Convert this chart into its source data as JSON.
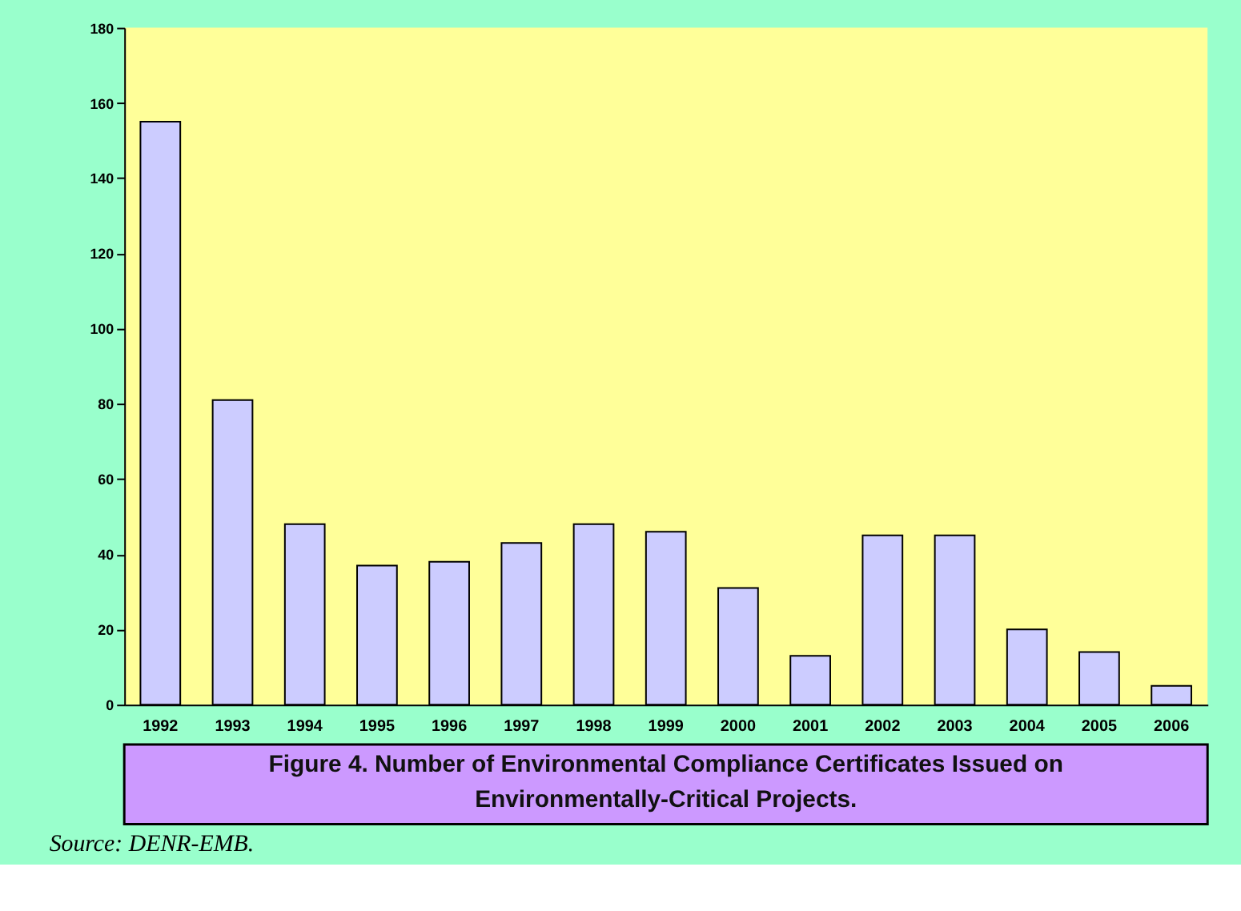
{
  "chart_data": {
    "type": "bar",
    "title": "Figure 4.  Number of Environmental Compliance Certificates Issued on\nEnvironmentally-Critical Projects.",
    "categories": [
      "1992",
      "1993",
      "1994",
      "1995",
      "1996",
      "1997",
      "1998",
      "1999",
      "2000",
      "2001",
      "2002",
      "2003",
      "2004",
      "2005",
      "2006"
    ],
    "values": [
      155,
      81,
      48,
      37,
      38,
      43,
      48,
      46,
      31,
      13,
      45,
      45,
      20,
      14,
      5
    ],
    "color": "#ccccff",
    "ylim": [
      0,
      180
    ],
    "yticks": [
      0,
      20,
      40,
      60,
      80,
      100,
      120,
      140,
      160,
      180
    ],
    "grid": false,
    "annotations": [
      "Source: DENR-EMB."
    ]
  }
}
